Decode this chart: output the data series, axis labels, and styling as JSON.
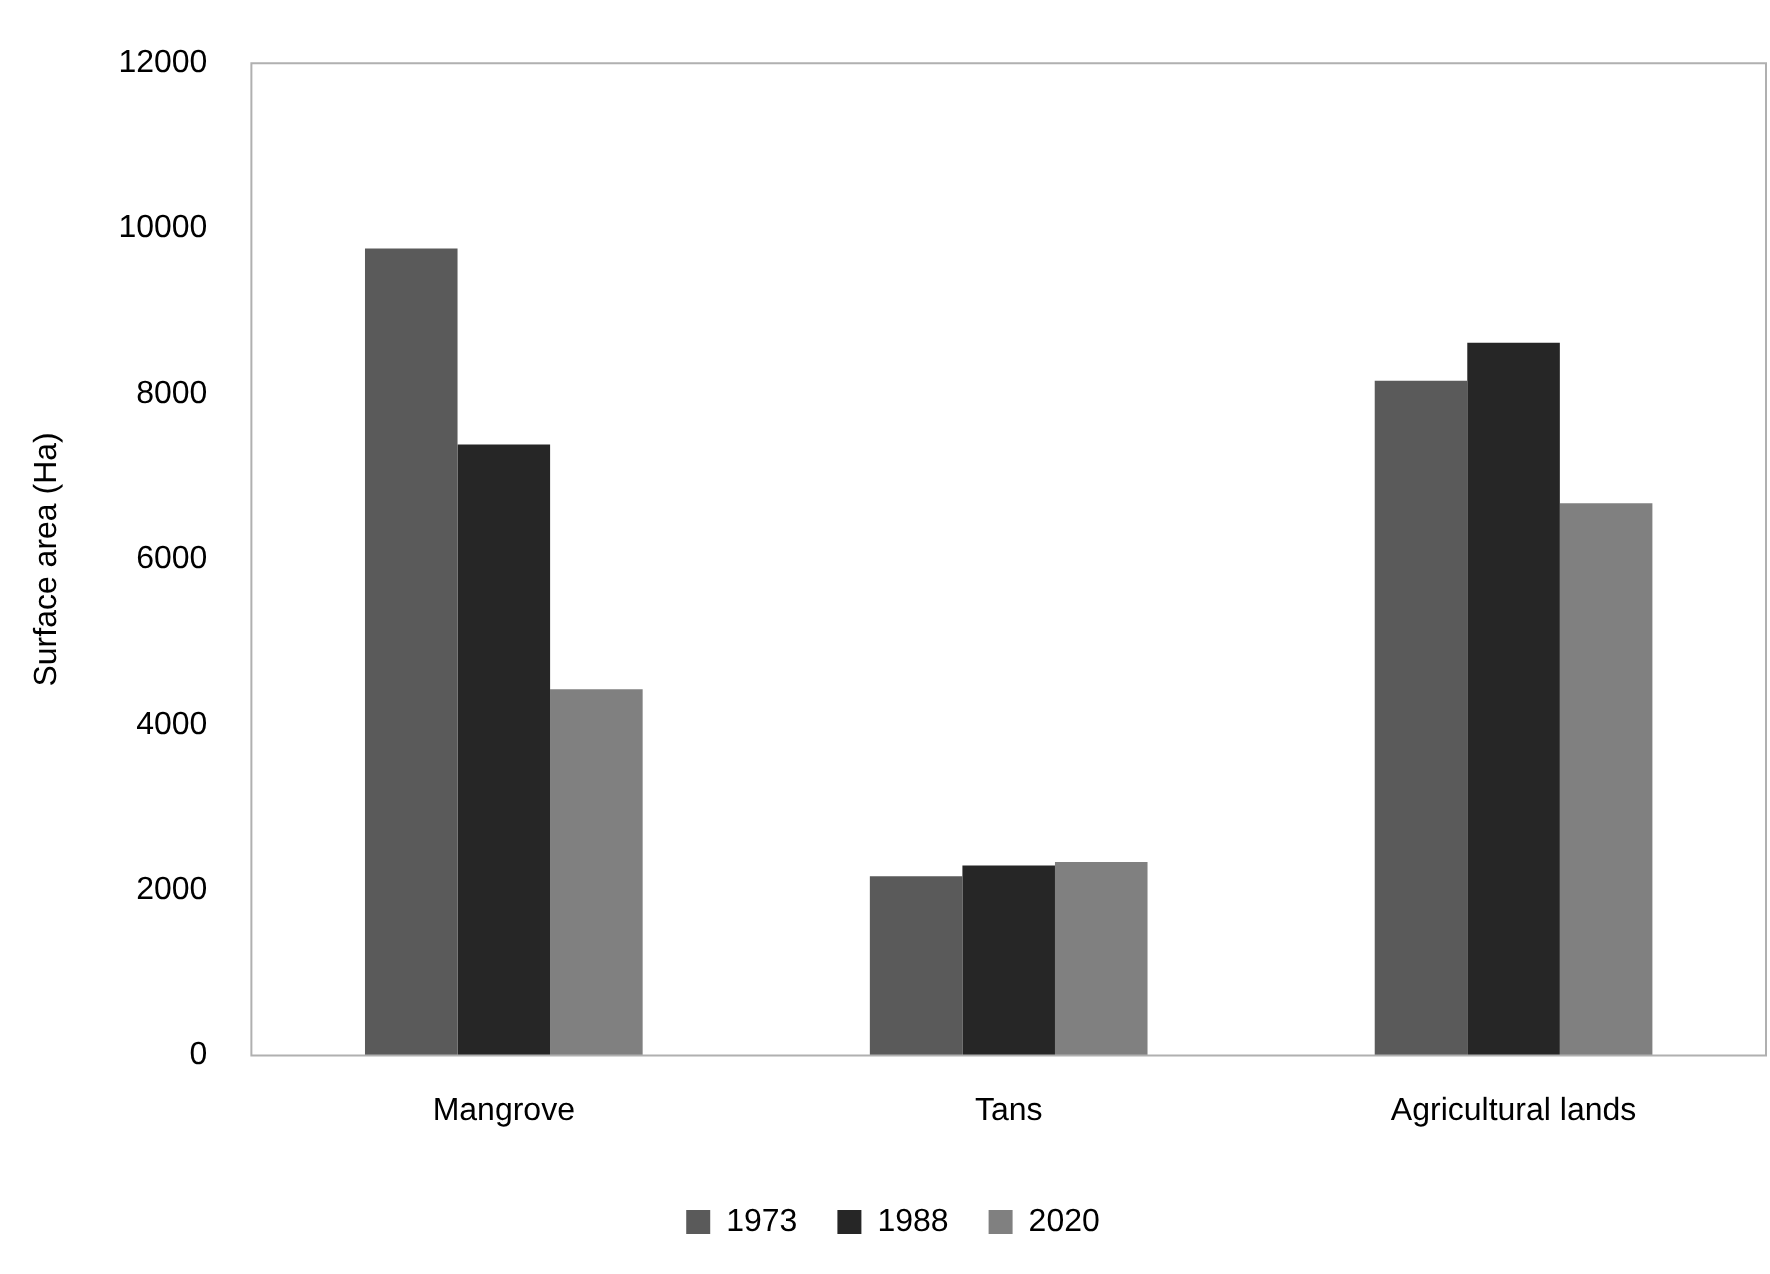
{
  "chart_data": {
    "type": "bar",
    "ylabel": "Surface area (Ha)",
    "categories": [
      "Mangrove",
      "Tans",
      "Agricultural lands"
    ],
    "series": [
      {
        "name": "1973",
        "color": "#5a5a5a",
        "values": [
          9760,
          2170,
          8160
        ]
      },
      {
        "name": "1988",
        "color": "#262626",
        "values": [
          7390,
          2300,
          8620
        ]
      },
      {
        "name": "2020",
        "color": "#808080",
        "values": [
          4430,
          2340,
          6680
        ]
      }
    ],
    "ylim": [
      0,
      12000
    ],
    "yticks": [
      0,
      2000,
      4000,
      6000,
      8000,
      10000,
      12000
    ],
    "grid": false,
    "legend": "bottom"
  }
}
